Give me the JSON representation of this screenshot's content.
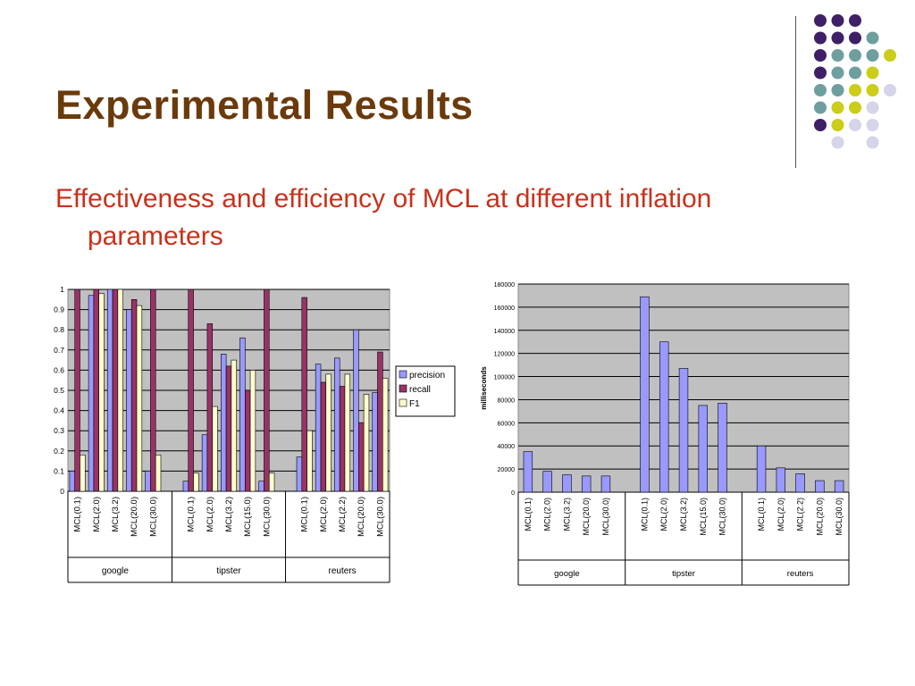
{
  "slide": {
    "title": "Experimental Results",
    "subtitle": "Effectiveness and efficiency of MCL at different inflation parameters"
  },
  "colors": {
    "title": "#6b3a0b",
    "subtitle": "#c8321a",
    "plot_bg": "#c0c0c0",
    "precision": "#9999ff",
    "recall": "#993366",
    "f1": "#ffffcc",
    "time": "#9999ff",
    "dot_purple": "#3f1f66",
    "dot_teal": "#6f9e9e",
    "dot_yellow": "#cccc1a",
    "dot_lavender": "#d4d4ea"
  },
  "decoration": {
    "dot_grid": [
      [
        "purple",
        "purple",
        "purple",
        null,
        null
      ],
      [
        "purple",
        "purple",
        "purple",
        "teal",
        null
      ],
      [
        "purple",
        "teal",
        "teal",
        "teal",
        "yellow"
      ],
      [
        "purple",
        "teal",
        "teal",
        "yellow",
        null
      ],
      [
        "teal",
        "teal",
        "yellow",
        "yellow",
        "lavender"
      ],
      [
        "teal",
        "yellow",
        "yellow",
        "lavender",
        null
      ],
      [
        "purple",
        "yellow",
        "lavender",
        "lavender",
        null
      ],
      [
        null,
        "lavender",
        null,
        "lavender",
        null
      ]
    ]
  },
  "chart_data": [
    {
      "type": "bar",
      "title": "",
      "xlabel": "",
      "ylabel": "",
      "ylim": [
        0,
        1
      ],
      "yticks": [
        "0",
        "0.1",
        "0.2",
        "0.3",
        "0.4",
        "0.5",
        "0.6",
        "0.7",
        "0.8",
        "0.9",
        "1"
      ],
      "grid": true,
      "legend_position": "right",
      "groups": [
        {
          "name": "google",
          "categories": [
            "MCL(0.1)",
            "MCL(2.0)",
            "MCL(3.2)",
            "MCL(20.0)",
            "MCL(30.0)"
          ]
        },
        {
          "name": "tipster",
          "categories": [
            "MCL(0.1)",
            "MCL(2.0)",
            "MCL(3.2)",
            "MCL(15.0)",
            "MCL(30.0)"
          ]
        },
        {
          "name": "reuters",
          "categories": [
            "MCL(0.1)",
            "MCL(2.0)",
            "MCL(2.2)",
            "MCL(20.0)",
            "MCL(30.0)"
          ]
        }
      ],
      "series": [
        {
          "name": "precision",
          "values": [
            0.1,
            0.97,
            1.0,
            0.9,
            0.1,
            0.05,
            0.28,
            0.68,
            0.76,
            0.05,
            0.17,
            0.63,
            0.66,
            0.8,
            0.49
          ]
        },
        {
          "name": "recall",
          "values": [
            1.0,
            1.0,
            1.0,
            0.95,
            1.0,
            1.0,
            0.83,
            0.62,
            0.5,
            1.0,
            0.96,
            0.54,
            0.52,
            0.34,
            0.69
          ]
        },
        {
          "name": "F1",
          "values": [
            0.18,
            0.98,
            1.0,
            0.92,
            0.18,
            0.09,
            0.42,
            0.65,
            0.6,
            0.09,
            0.3,
            0.58,
            0.58,
            0.48,
            0.56
          ]
        }
      ]
    },
    {
      "type": "bar",
      "title": "",
      "xlabel": "",
      "ylabel": "milliseconds",
      "ylim": [
        0,
        180000
      ],
      "yticks": [
        "0",
        "20000",
        "40000",
        "60000",
        "80000",
        "100000",
        "120000",
        "140000",
        "160000",
        "180000"
      ],
      "grid": true,
      "groups": [
        {
          "name": "google",
          "categories": [
            "MCL(0.1)",
            "MCL(2.0)",
            "MCL(3.2)",
            "MCL(20.0)",
            "MCL(30.0)"
          ]
        },
        {
          "name": "tipster",
          "categories": [
            "MCL(0.1)",
            "MCL(2.0)",
            "MCL(3.2)",
            "MCL(15.0)",
            "MCL(30.0)"
          ]
        },
        {
          "name": "reuters",
          "categories": [
            "MCL(0.1)",
            "MCL(2.0)",
            "MCL(2.2)",
            "MCL(20.0)",
            "MCL(30.0)"
          ]
        }
      ],
      "series": [
        {
          "name": "",
          "values": [
            35000,
            18000,
            15000,
            14000,
            14000,
            169000,
            130000,
            107000,
            75000,
            77000,
            40000,
            21000,
            16000,
            10000,
            10000
          ]
        }
      ]
    }
  ]
}
